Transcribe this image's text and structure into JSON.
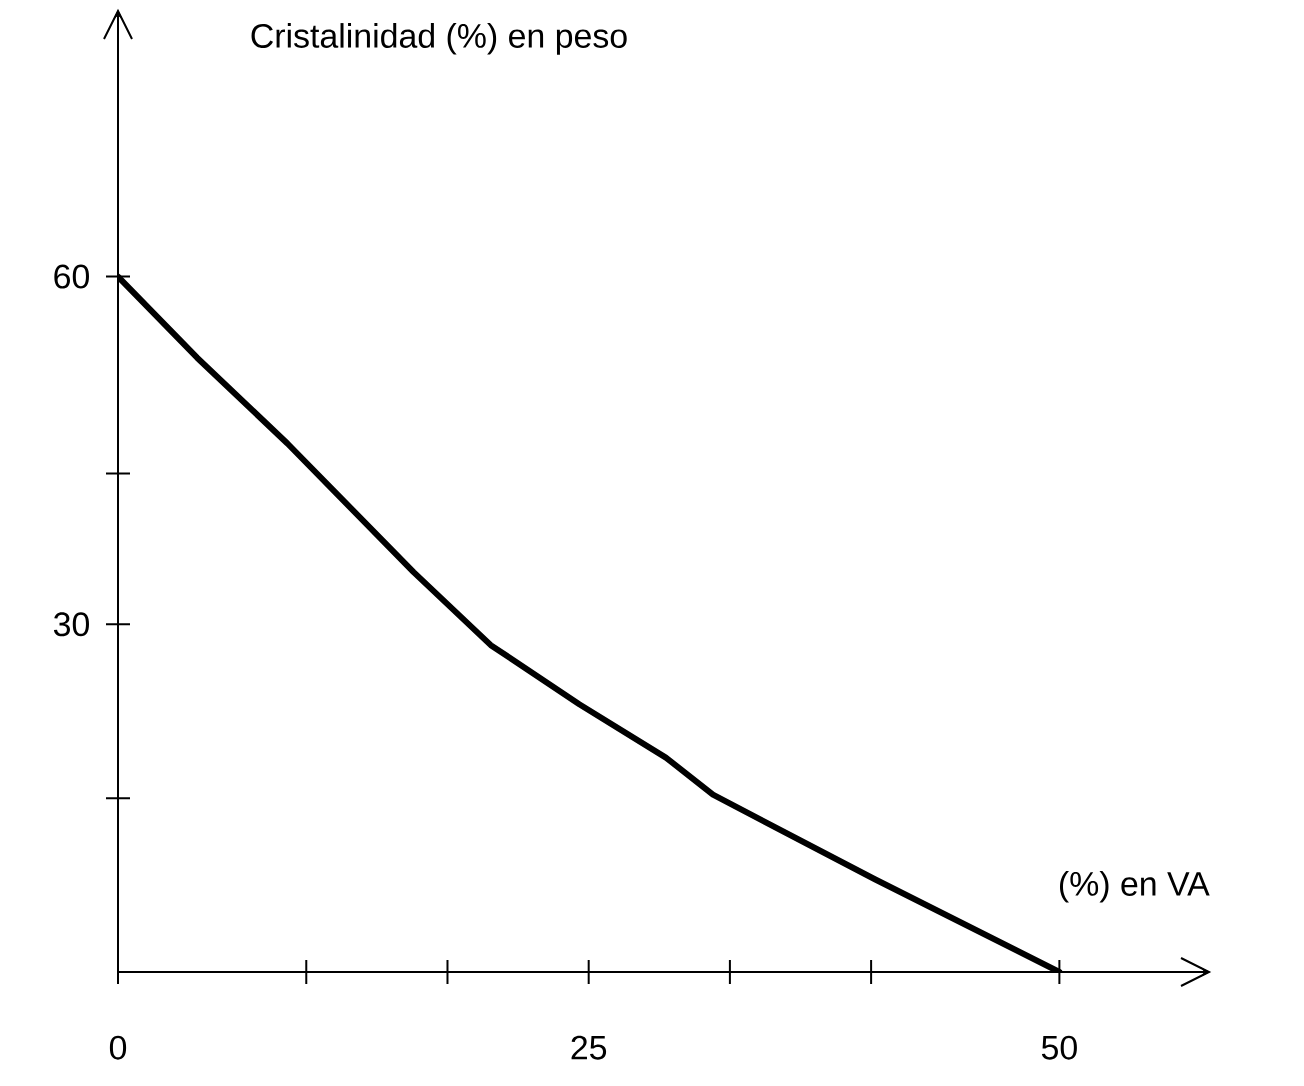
{
  "chart_data": {
    "type": "line",
    "ylabel": "Cristalinidad (%) en peso",
    "xlabel": "(%) en VA",
    "x": [
      0,
      4.2,
      9.0,
      15.7,
      19.8,
      24.5,
      29.1,
      31.6,
      40.2,
      50
    ],
    "series": [
      {
        "color": "#000000",
        "values": [
          60,
          53,
          45.6,
          34.5,
          28.2,
          23.1,
          18.5,
          15.3,
          8.0,
          0
        ]
      }
    ],
    "xlim": [
      0,
      58
    ],
    "ylim": [
      0,
      83
    ],
    "xticks": [
      0,
      {
        "value": 10,
        "label": null
      },
      {
        "value": 17.5,
        "label": null
      },
      25,
      {
        "value": 32.5,
        "label": null
      },
      {
        "value": 40,
        "label": null
      },
      50
    ],
    "yticks": [
      {
        "value": 15,
        "label": null
      },
      30,
      {
        "value": 43,
        "label": null
      },
      60
    ],
    "grid": false,
    "marker": "none",
    "line_style": "solid"
  }
}
